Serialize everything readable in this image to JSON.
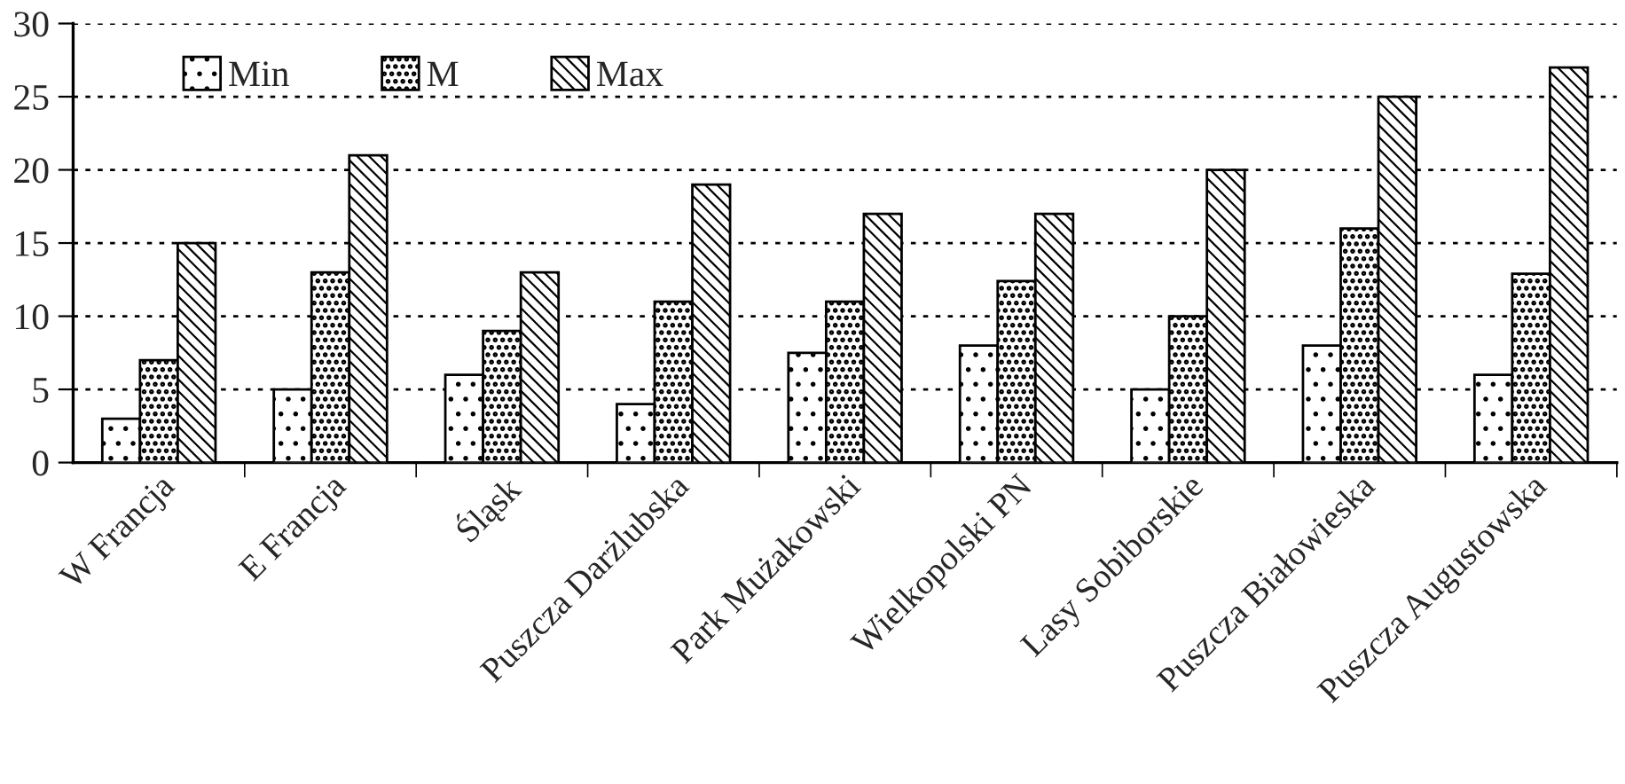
{
  "chart_data": {
    "type": "bar",
    "categories": [
      "W Francja",
      "E Francja",
      "Śląsk",
      "Puszcza Darżlubska",
      "Park Mużakowski",
      "Wielkopolski PN",
      "Lasy Sobiborskie",
      "Puszcza Białowieska",
      "Puszcza Augustowska"
    ],
    "series": [
      {
        "name": "Min",
        "color": "#000000",
        "values": [
          3,
          5,
          6,
          4,
          7.5,
          8,
          5,
          8,
          6
        ]
      },
      {
        "name": "M",
        "color": "#000000",
        "values": [
          7,
          13,
          9,
          11,
          11,
          12.4,
          10,
          16,
          12.9
        ]
      },
      {
        "name": "Max",
        "color": "#000000",
        "values": [
          15,
          21,
          13,
          19,
          17,
          17,
          20,
          25,
          27
        ]
      }
    ],
    "ylim": [
      0,
      30
    ],
    "yticks": [
      0,
      5,
      10,
      15,
      20,
      25,
      30
    ],
    "grid": "y",
    "legend": "top left"
  }
}
